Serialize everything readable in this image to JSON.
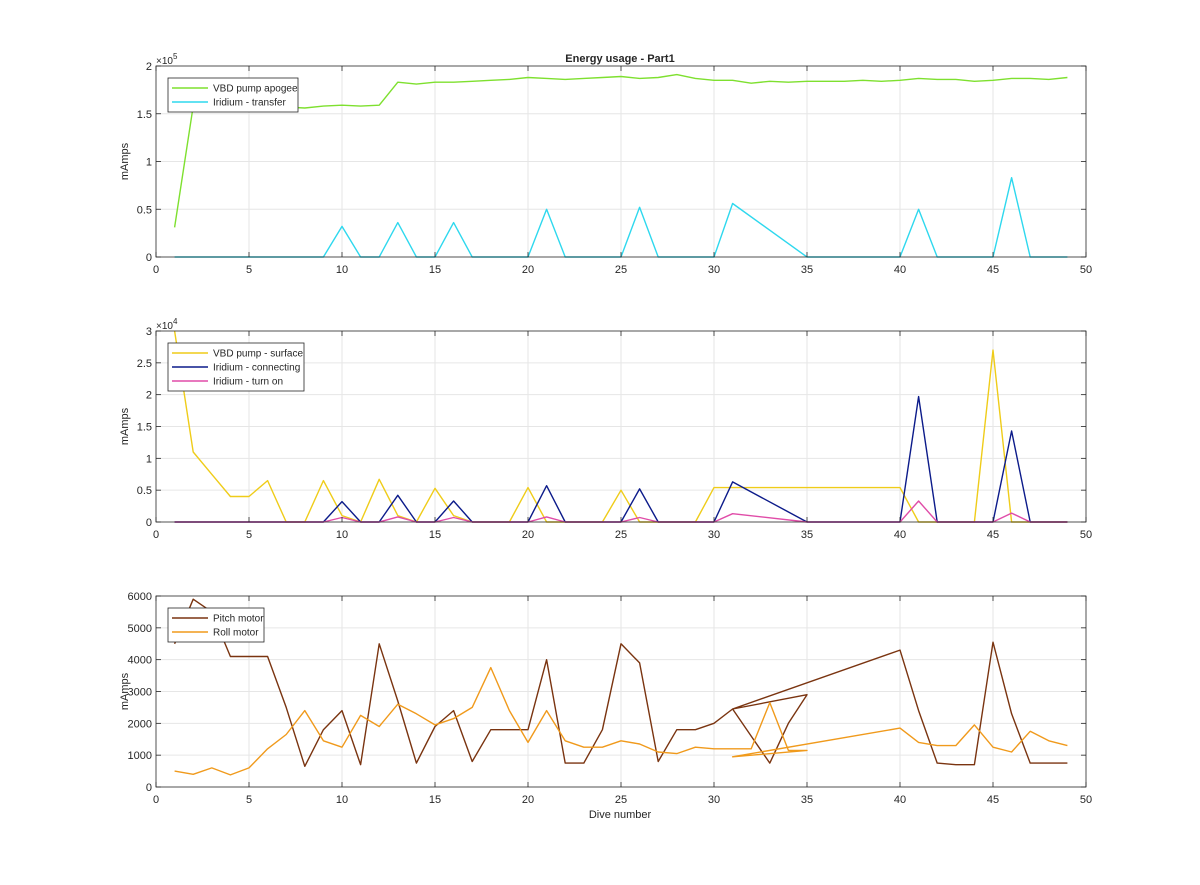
{
  "colors": {
    "axis": "#262626",
    "grid": "#e6e6e6",
    "background": "#ffffff"
  },
  "chart_data": [
    {
      "type": "line",
      "title": "Energy usage - Part1",
      "xlabel": "",
      "ylabel": "mAmps",
      "exponent": "5",
      "xlim": [
        0,
        50
      ],
      "ylim": [
        0,
        200000
      ],
      "xticks": [
        0,
        5,
        10,
        15,
        20,
        25,
        30,
        35,
        40,
        45,
        50
      ],
      "yticks": [
        0,
        50000,
        100000,
        150000,
        200000
      ],
      "ytick_labels": [
        "0",
        "0.5",
        "1",
        "1.5",
        "2"
      ],
      "grid": true,
      "legend": "top-left",
      "series": [
        {
          "name": "VBD pump apogee",
          "color": "#7ee02f",
          "x": [
            1,
            2,
            3,
            4,
            5,
            6,
            7,
            8,
            9,
            10,
            11,
            12,
            13,
            14,
            15,
            16,
            17,
            18,
            19,
            20,
            21,
            22,
            23,
            24,
            25,
            26,
            27,
            28,
            29,
            30,
            31,
            32,
            33,
            34,
            35,
            36,
            37,
            38,
            39,
            40,
            41,
            42,
            43,
            44,
            45,
            46,
            47,
            48,
            49
          ],
          "y": [
            31000,
            158000,
            157000,
            156000,
            157000,
            158000,
            157000,
            156000,
            158000,
            159000,
            158000,
            159000,
            183000,
            181000,
            183000,
            183000,
            184000,
            185000,
            186000,
            188000,
            187000,
            186000,
            187000,
            188000,
            189000,
            187000,
            188000,
            191000,
            187000,
            185000,
            185000,
            182000,
            184000,
            183000,
            184000,
            184000,
            184000,
            185000,
            184000,
            185000,
            187000,
            186000,
            186000,
            184000,
            185000,
            187000,
            187000,
            186000,
            188000
          ]
        },
        {
          "name": "Iridium - transfer",
          "color": "#2ed8ee",
          "x": [
            1,
            2,
            3,
            4,
            5,
            6,
            7,
            8,
            9,
            10,
            11,
            12,
            13,
            14,
            15,
            16,
            17,
            18,
            19,
            20,
            21,
            22,
            23,
            24,
            25,
            26,
            27,
            28,
            29,
            30,
            31,
            35,
            36,
            37,
            38,
            39,
            40,
            41,
            42,
            43,
            44,
            45,
            46,
            47,
            48,
            49
          ],
          "y": [
            0,
            0,
            0,
            0,
            0,
            0,
            0,
            0,
            0,
            32000,
            0,
            0,
            36000,
            0,
            0,
            36000,
            0,
            0,
            0,
            0,
            50000,
            0,
            0,
            0,
            0,
            52000,
            0,
            0,
            0,
            0,
            56000,
            0,
            0,
            0,
            0,
            0,
            0,
            50000,
            0,
            0,
            0,
            0,
            83000,
            0,
            0,
            0
          ]
        }
      ]
    },
    {
      "type": "line",
      "title": "",
      "xlabel": "",
      "ylabel": "mAmps",
      "exponent": "4",
      "xlim": [
        0,
        50
      ],
      "ylim": [
        0,
        30000
      ],
      "xticks": [
        0,
        5,
        10,
        15,
        20,
        25,
        30,
        35,
        40,
        45,
        50
      ],
      "yticks": [
        0,
        5000,
        10000,
        15000,
        20000,
        25000,
        30000
      ],
      "ytick_labels": [
        "0",
        "0.5",
        "1",
        "1.5",
        "2",
        "2.5",
        "3"
      ],
      "grid": true,
      "legend": "top-left",
      "series": [
        {
          "name": "VBD pump - surface",
          "color": "#efcc19",
          "x": [
            1,
            2,
            3,
            4,
            5,
            6,
            7,
            8,
            9,
            10,
            11,
            12,
            13,
            14,
            15,
            16,
            17,
            18,
            19,
            20,
            21,
            22,
            23,
            24,
            25,
            26,
            27,
            28,
            29,
            30,
            31,
            32,
            33,
            34,
            35,
            36,
            37,
            38,
            39,
            40,
            41,
            42,
            43,
            44,
            45,
            46,
            47,
            48,
            49
          ],
          "y": [
            30000,
            11000,
            7500,
            4000,
            4000,
            6500,
            0,
            0,
            6500,
            1000,
            0,
            6700,
            1000,
            0,
            5300,
            1000,
            0,
            0,
            0,
            5400,
            0,
            0,
            0,
            0,
            5000,
            0,
            0,
            0,
            0,
            5400,
            5400,
            5400,
            5400,
            5400,
            5400,
            5400,
            5400,
            5400,
            5400,
            5400,
            0,
            0,
            0,
            0,
            27000,
            0,
            0,
            0,
            0
          ]
        },
        {
          "name": "Iridium - connecting",
          "color": "#0c1b8a",
          "x": [
            1,
            2,
            3,
            4,
            5,
            6,
            7,
            8,
            9,
            10,
            11,
            12,
            13,
            14,
            15,
            16,
            17,
            18,
            19,
            20,
            21,
            22,
            23,
            24,
            25,
            26,
            27,
            28,
            29,
            30,
            31,
            35,
            36,
            37,
            38,
            39,
            40,
            41,
            42,
            43,
            44,
            45,
            46,
            47,
            48,
            49
          ],
          "y": [
            0,
            0,
            0,
            0,
            0,
            0,
            0,
            0,
            0,
            3200,
            0,
            0,
            4200,
            0,
            0,
            3300,
            0,
            0,
            0,
            0,
            5700,
            0,
            0,
            0,
            0,
            5200,
            0,
            0,
            0,
            0,
            6300,
            0,
            0,
            0,
            0,
            0,
            0,
            19700,
            0,
            0,
            0,
            0,
            14300,
            0,
            0,
            0
          ]
        },
        {
          "name": "Iridium - turn on",
          "color": "#e04ca8",
          "x": [
            1,
            2,
            3,
            4,
            5,
            6,
            7,
            8,
            9,
            10,
            11,
            12,
            13,
            14,
            15,
            16,
            17,
            18,
            19,
            20,
            21,
            22,
            23,
            24,
            25,
            26,
            27,
            28,
            29,
            30,
            31,
            35,
            36,
            37,
            38,
            39,
            40,
            41,
            42,
            43,
            44,
            45,
            46,
            47,
            48,
            49
          ],
          "y": [
            0,
            0,
            0,
            0,
            0,
            0,
            0,
            0,
            0,
            700,
            0,
            0,
            800,
            0,
            0,
            700,
            0,
            0,
            0,
            0,
            800,
            0,
            0,
            0,
            0,
            700,
            0,
            0,
            0,
            0,
            1300,
            0,
            0,
            0,
            0,
            0,
            0,
            3300,
            0,
            0,
            0,
            0,
            1400,
            0,
            0,
            0
          ]
        }
      ]
    },
    {
      "type": "line",
      "title": "",
      "xlabel": "Dive number",
      "ylabel": "mAmps",
      "exponent": "",
      "xlim": [
        0,
        50
      ],
      "ylim": [
        0,
        6000
      ],
      "xticks": [
        0,
        5,
        10,
        15,
        20,
        25,
        30,
        35,
        40,
        45,
        50
      ],
      "yticks": [
        0,
        1000,
        2000,
        3000,
        4000,
        5000,
        6000
      ],
      "ytick_labels": [
        "0",
        "1000",
        "2000",
        "3000",
        "4000",
        "5000",
        "6000"
      ],
      "grid": true,
      "legend": "top-left",
      "series": [
        {
          "name": "Pitch motor",
          "color": "#7a3410",
          "x": [
            1,
            2,
            3,
            4,
            5,
            6,
            7,
            8,
            9,
            10,
            11,
            12,
            13,
            14,
            15,
            16,
            17,
            18,
            19,
            20,
            21,
            22,
            23,
            24,
            25,
            26,
            27,
            28,
            29,
            30,
            31,
            32,
            33,
            34,
            35,
            31,
            40,
            41,
            42,
            43,
            44,
            45,
            46,
            47,
            48,
            49
          ],
          "y": [
            4500,
            5900,
            5500,
            4100,
            4100,
            4100,
            2500,
            650,
            1800,
            2400,
            700,
            4500,
            2700,
            750,
            1900,
            2400,
            800,
            1800,
            1800,
            1800,
            4000,
            750,
            750,
            1800,
            4500,
            3900,
            800,
            1800,
            1800,
            2000,
            2450,
            1600,
            750,
            2000,
            2900,
            2450,
            4300,
            2400,
            750,
            700,
            700,
            4550,
            2300,
            750,
            750,
            750
          ]
        },
        {
          "name": "Roll motor",
          "color": "#f09a1c",
          "x": [
            1,
            2,
            3,
            4,
            5,
            6,
            7,
            8,
            9,
            10,
            11,
            12,
            13,
            14,
            15,
            16,
            17,
            18,
            19,
            20,
            21,
            22,
            23,
            24,
            25,
            26,
            27,
            28,
            29,
            30,
            31,
            32,
            33,
            34,
            35,
            31,
            40,
            41,
            42,
            43,
            44,
            45,
            46,
            47,
            48,
            49
          ],
          "y": [
            500,
            400,
            600,
            380,
            600,
            1200,
            1650,
            2400,
            1450,
            1250,
            2250,
            1900,
            2600,
            2300,
            1950,
            2150,
            2500,
            3750,
            2400,
            1400,
            2400,
            1450,
            1250,
            1250,
            1450,
            1350,
            1100,
            1050,
            1250,
            1200,
            1200,
            1200,
            2650,
            1150,
            1150,
            950,
            1850,
            1400,
            1300,
            1300,
            1950,
            1250,
            1100,
            1750,
            1450,
            1300
          ]
        }
      ]
    }
  ]
}
